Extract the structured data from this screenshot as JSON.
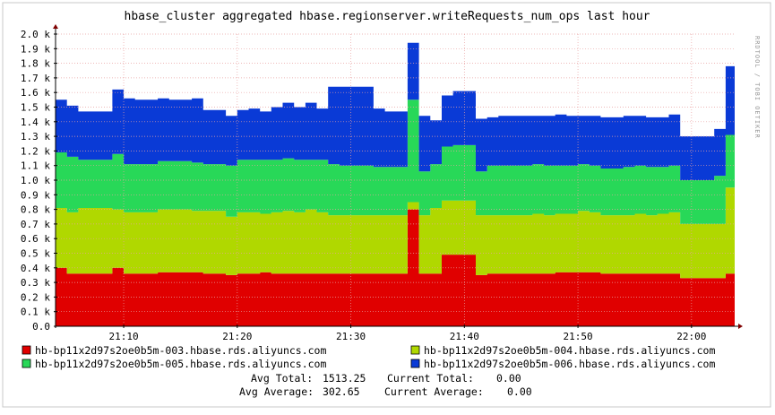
{
  "chart_data": {
    "type": "area",
    "stacked": true,
    "title": "hbase_cluster aggregated hbase.regionserver.writeRequests_num_ops last hour",
    "side_label": "RRDTOOL / TOBI OETIKER",
    "xlabel": "",
    "ylabel": "",
    "x_tick_labels": [
      "21:10",
      "21:20",
      "21:30",
      "21:40",
      "21:50",
      "22:00"
    ],
    "x_tick_positions": [
      6,
      16,
      26,
      36,
      46,
      56
    ],
    "x_range": [
      0,
      59.8
    ],
    "y_tick_labels": [
      "0.0",
      "0.1 k",
      "0.2 k",
      "0.3 k",
      "0.4 k",
      "0.5 k",
      "0.6 k",
      "0.7 k",
      "0.8 k",
      "0.9 k",
      "1.0 k",
      "1.1 k",
      "1.2 k",
      "1.3 k",
      "1.4 k",
      "1.5 k",
      "1.6 k",
      "1.7 k",
      "1.8 k",
      "1.9 k",
      "2.0 k"
    ],
    "ylim": [
      0,
      2000
    ],
    "grid": true,
    "x": [
      0,
      1,
      2,
      3,
      4,
      5,
      6,
      7,
      8,
      9,
      10,
      11,
      12,
      13,
      14,
      15,
      16,
      17,
      18,
      19,
      20,
      21,
      22,
      23,
      24,
      25,
      26,
      27,
      28,
      29,
      30,
      31,
      32,
      33,
      34,
      35,
      36,
      37,
      38,
      39,
      40,
      41,
      42,
      43,
      44,
      45,
      46,
      47,
      48,
      49,
      50,
      51,
      52,
      53,
      54,
      55,
      56,
      57,
      58,
      59
    ],
    "series": [
      {
        "name": "hb-bp11x2d97s2oe0b5m-003.hbase.rds.aliyuncs.com",
        "color": "#e00000",
        "values": [
          400,
          360,
          360,
          360,
          360,
          400,
          360,
          360,
          360,
          370,
          370,
          370,
          370,
          360,
          360,
          350,
          360,
          360,
          370,
          360,
          360,
          360,
          360,
          360,
          360,
          360,
          360,
          360,
          360,
          360,
          360,
          800,
          360,
          360,
          490,
          490,
          490,
          350,
          360,
          360,
          360,
          360,
          360,
          360,
          370,
          370,
          370,
          370,
          360,
          360,
          360,
          360,
          360,
          360,
          360,
          330,
          330,
          330,
          330,
          360
        ]
      },
      {
        "name": "hb-bp11x2d97s2oe0b5m-004.hbase.rds.aliyuncs.com",
        "color": "#b0d800",
        "values": [
          410,
          420,
          450,
          450,
          450,
          400,
          420,
          420,
          420,
          430,
          430,
          430,
          420,
          430,
          430,
          400,
          420,
          420,
          400,
          420,
          430,
          420,
          440,
          420,
          400,
          400,
          400,
          400,
          400,
          400,
          400,
          50,
          400,
          450,
          370,
          370,
          370,
          410,
          400,
          400,
          400,
          400,
          410,
          400,
          400,
          400,
          420,
          410,
          400,
          400,
          400,
          410,
          400,
          410,
          420,
          370,
          370,
          370,
          370,
          590
        ]
      },
      {
        "name": "hb-bp11x2d97s2oe0b5m-005.hbase.rds.aliyuncs.com",
        "color": "#28d858",
        "values": [
          380,
          380,
          330,
          330,
          330,
          380,
          330,
          330,
          330,
          330,
          330,
          330,
          330,
          320,
          320,
          350,
          360,
          360,
          370,
          360,
          360,
          360,
          340,
          360,
          350,
          340,
          340,
          340,
          330,
          330,
          330,
          700,
          300,
          300,
          370,
          380,
          380,
          300,
          340,
          340,
          340,
          340,
          340,
          340,
          330,
          330,
          320,
          320,
          320,
          320,
          330,
          330,
          330,
          320,
          320,
          300,
          300,
          300,
          330,
          360
        ]
      },
      {
        "name": "hb-bp11x2d97s2oe0b5m-006.hbase.rds.aliyuncs.com",
        "color": "#0a3ad6",
        "values": [
          360,
          350,
          330,
          330,
          330,
          440,
          450,
          440,
          440,
          430,
          420,
          420,
          440,
          370,
          370,
          340,
          340,
          350,
          330,
          360,
          380,
          360,
          390,
          350,
          530,
          540,
          540,
          540,
          400,
          380,
          380,
          390,
          380,
          300,
          350,
          370,
          370,
          360,
          330,
          340,
          340,
          340,
          330,
          340,
          350,
          340,
          330,
          340,
          350,
          350,
          350,
          340,
          340,
          340,
          350,
          300,
          300,
          300,
          320,
          470
        ]
      }
    ],
    "legend": {
      "placement": "bottom",
      "entries": [
        {
          "label": "hb-bp11x2d97s2oe0b5m-003.hbase.rds.aliyuncs.com",
          "color": "#e00000"
        },
        {
          "label": "hb-bp11x2d97s2oe0b5m-004.hbase.rds.aliyuncs.com",
          "color": "#b0d800"
        },
        {
          "label": "hb-bp11x2d97s2oe0b5m-005.hbase.rds.aliyuncs.com",
          "color": "#28d858"
        },
        {
          "label": "hb-bp11x2d97s2oe0b5m-006.hbase.rds.aliyuncs.com",
          "color": "#0a3ad6"
        }
      ]
    },
    "stats": {
      "avg_total_label": "Avg Total:",
      "avg_total_value": "1513.25",
      "current_total_label": "Current Total:",
      "current_total_value": "0.00",
      "avg_average_label": "Avg Average:",
      "avg_average_value": "302.65",
      "current_average_label": "Current Average:",
      "current_average_value": "0.00"
    }
  }
}
